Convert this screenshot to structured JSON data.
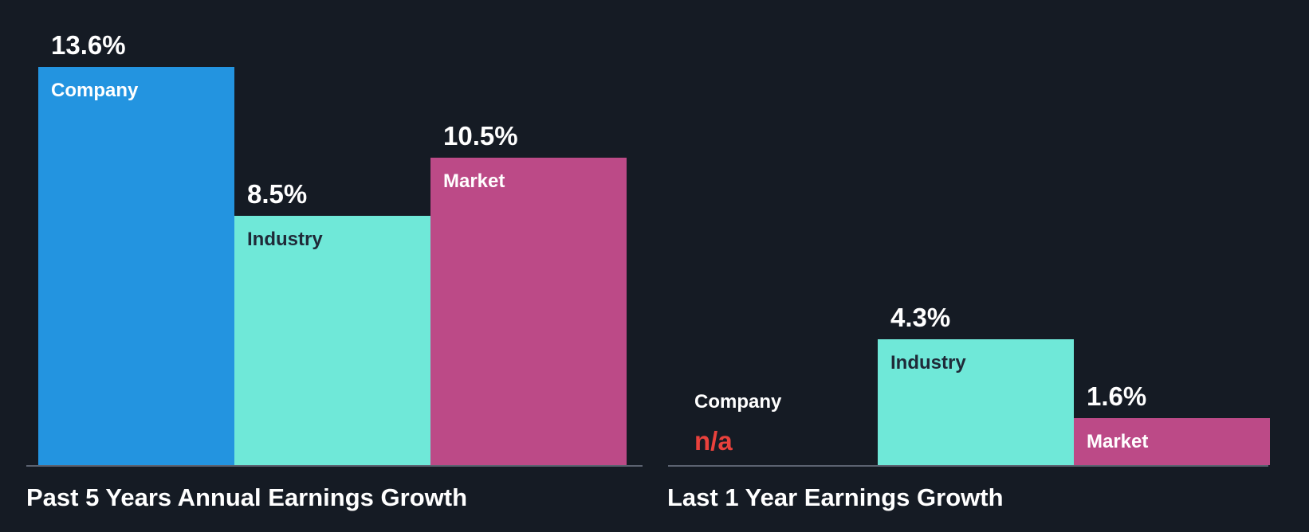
{
  "colors": {
    "background": "#151b24",
    "company": "#2394e0",
    "industry": "#6fe8d8",
    "market": "#bc4a87",
    "na": "#e8413c",
    "baseline": "#5b6270",
    "text_light": "#ffffff",
    "text_dark": "#1f2a38"
  },
  "chart_data": [
    {
      "type": "bar",
      "title": "Past 5 Years Annual Earnings Growth",
      "categories": [
        "Company",
        "Industry",
        "Market"
      ],
      "values": [
        13.6,
        8.5,
        10.5
      ],
      "value_labels": [
        "13.6%",
        "8.5%",
        "10.5%"
      ],
      "unit": "%",
      "ylim": [
        0,
        13.6
      ]
    },
    {
      "type": "bar",
      "title": "Last 1 Year Earnings Growth",
      "categories": [
        "Company",
        "Industry",
        "Market"
      ],
      "values": [
        null,
        4.3,
        1.6
      ],
      "value_labels": [
        "n/a",
        "4.3%",
        "1.6%"
      ],
      "unit": "%",
      "ylim": [
        0,
        13.6
      ]
    }
  ]
}
